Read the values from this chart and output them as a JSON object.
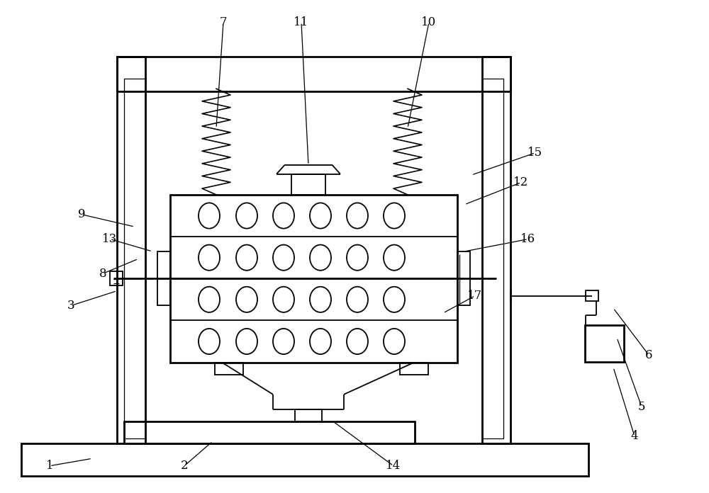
{
  "bg_color": "#ffffff",
  "line_color": "#000000",
  "lw": 1.3,
  "lw2": 2.0,
  "fig_width": 10.0,
  "fig_height": 6.96,
  "label_data": {
    "1": [
      0.07,
      0.055,
      0.13,
      0.07
    ],
    "2": [
      0.26,
      0.055,
      0.3,
      0.105
    ],
    "3": [
      0.1,
      0.38,
      0.165,
      0.41
    ],
    "4": [
      0.895,
      0.115,
      0.865,
      0.255
    ],
    "5": [
      0.905,
      0.175,
      0.87,
      0.315
    ],
    "6": [
      0.915,
      0.28,
      0.865,
      0.375
    ],
    "7": [
      0.315,
      0.955,
      0.305,
      0.74
    ],
    "8": [
      0.145,
      0.445,
      0.195,
      0.475
    ],
    "9": [
      0.115,
      0.565,
      0.19,
      0.54
    ],
    "10": [
      0.605,
      0.955,
      0.575,
      0.74
    ],
    "11": [
      0.425,
      0.955,
      0.435,
      0.665
    ],
    "12": [
      0.735,
      0.63,
      0.655,
      0.585
    ],
    "13": [
      0.155,
      0.515,
      0.215,
      0.49
    ],
    "14": [
      0.555,
      0.055,
      0.47,
      0.145
    ],
    "15": [
      0.755,
      0.69,
      0.665,
      0.645
    ],
    "16": [
      0.745,
      0.515,
      0.655,
      0.49
    ],
    "17": [
      0.67,
      0.4,
      0.625,
      0.365
    ]
  }
}
